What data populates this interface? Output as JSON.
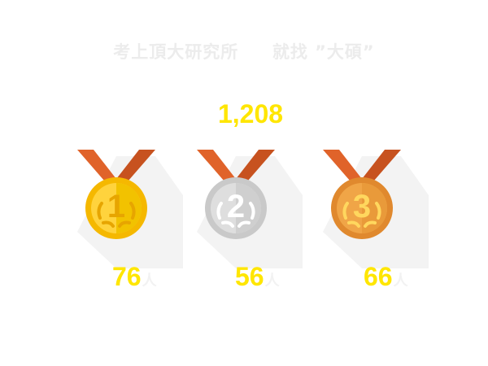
{
  "headline": "考上頂大研究所     就找 ”大碩”",
  "total": "1,208",
  "medals": [
    {
      "rank": "1",
      "tier": "gold-medal-icon",
      "count": "76",
      "unit": "人"
    },
    {
      "rank": "2",
      "tier": "silver-medal-icon",
      "count": "56",
      "unit": "人"
    },
    {
      "rank": "3",
      "tier": "bronze-medal-icon",
      "count": "66",
      "unit": "人"
    }
  ],
  "colors": {
    "accent_yellow": "#ffe600",
    "ribbon_orange": "#e0632a",
    "gold": "#f5b800",
    "silver": "#c9c9c9",
    "bronze": "#e0892e"
  }
}
